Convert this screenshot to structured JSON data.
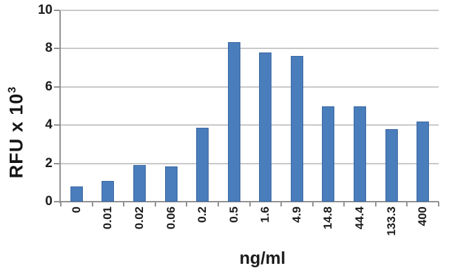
{
  "chart_data": {
    "type": "bar",
    "title": "",
    "categories": [
      "0",
      "0.01",
      "0.02",
      "0.06",
      "0.2",
      "0.5",
      "1.6",
      "4.9",
      "14.8",
      "44.4",
      "133.3",
      "400"
    ],
    "values": [
      0.8,
      1.1,
      1.9,
      1.85,
      3.85,
      8.35,
      7.8,
      7.6,
      5.0,
      5.0,
      3.8,
      4.2
    ],
    "xlabel": "ng/ml",
    "ylabel_base": "RFU x 10",
    "ylabel_sup": "3",
    "ylim": [
      0,
      10
    ],
    "yticks": [
      0,
      2,
      4,
      6,
      8,
      10
    ],
    "grid": true,
    "legend": false,
    "colors": {
      "bar_fill": "#4a7dbb",
      "bar_border": "#3a67a3",
      "gridline": "#c8c8c8",
      "axis": "#909090",
      "tick_text": "#1b1b1b",
      "title_text": "#1c1c1c"
    }
  }
}
